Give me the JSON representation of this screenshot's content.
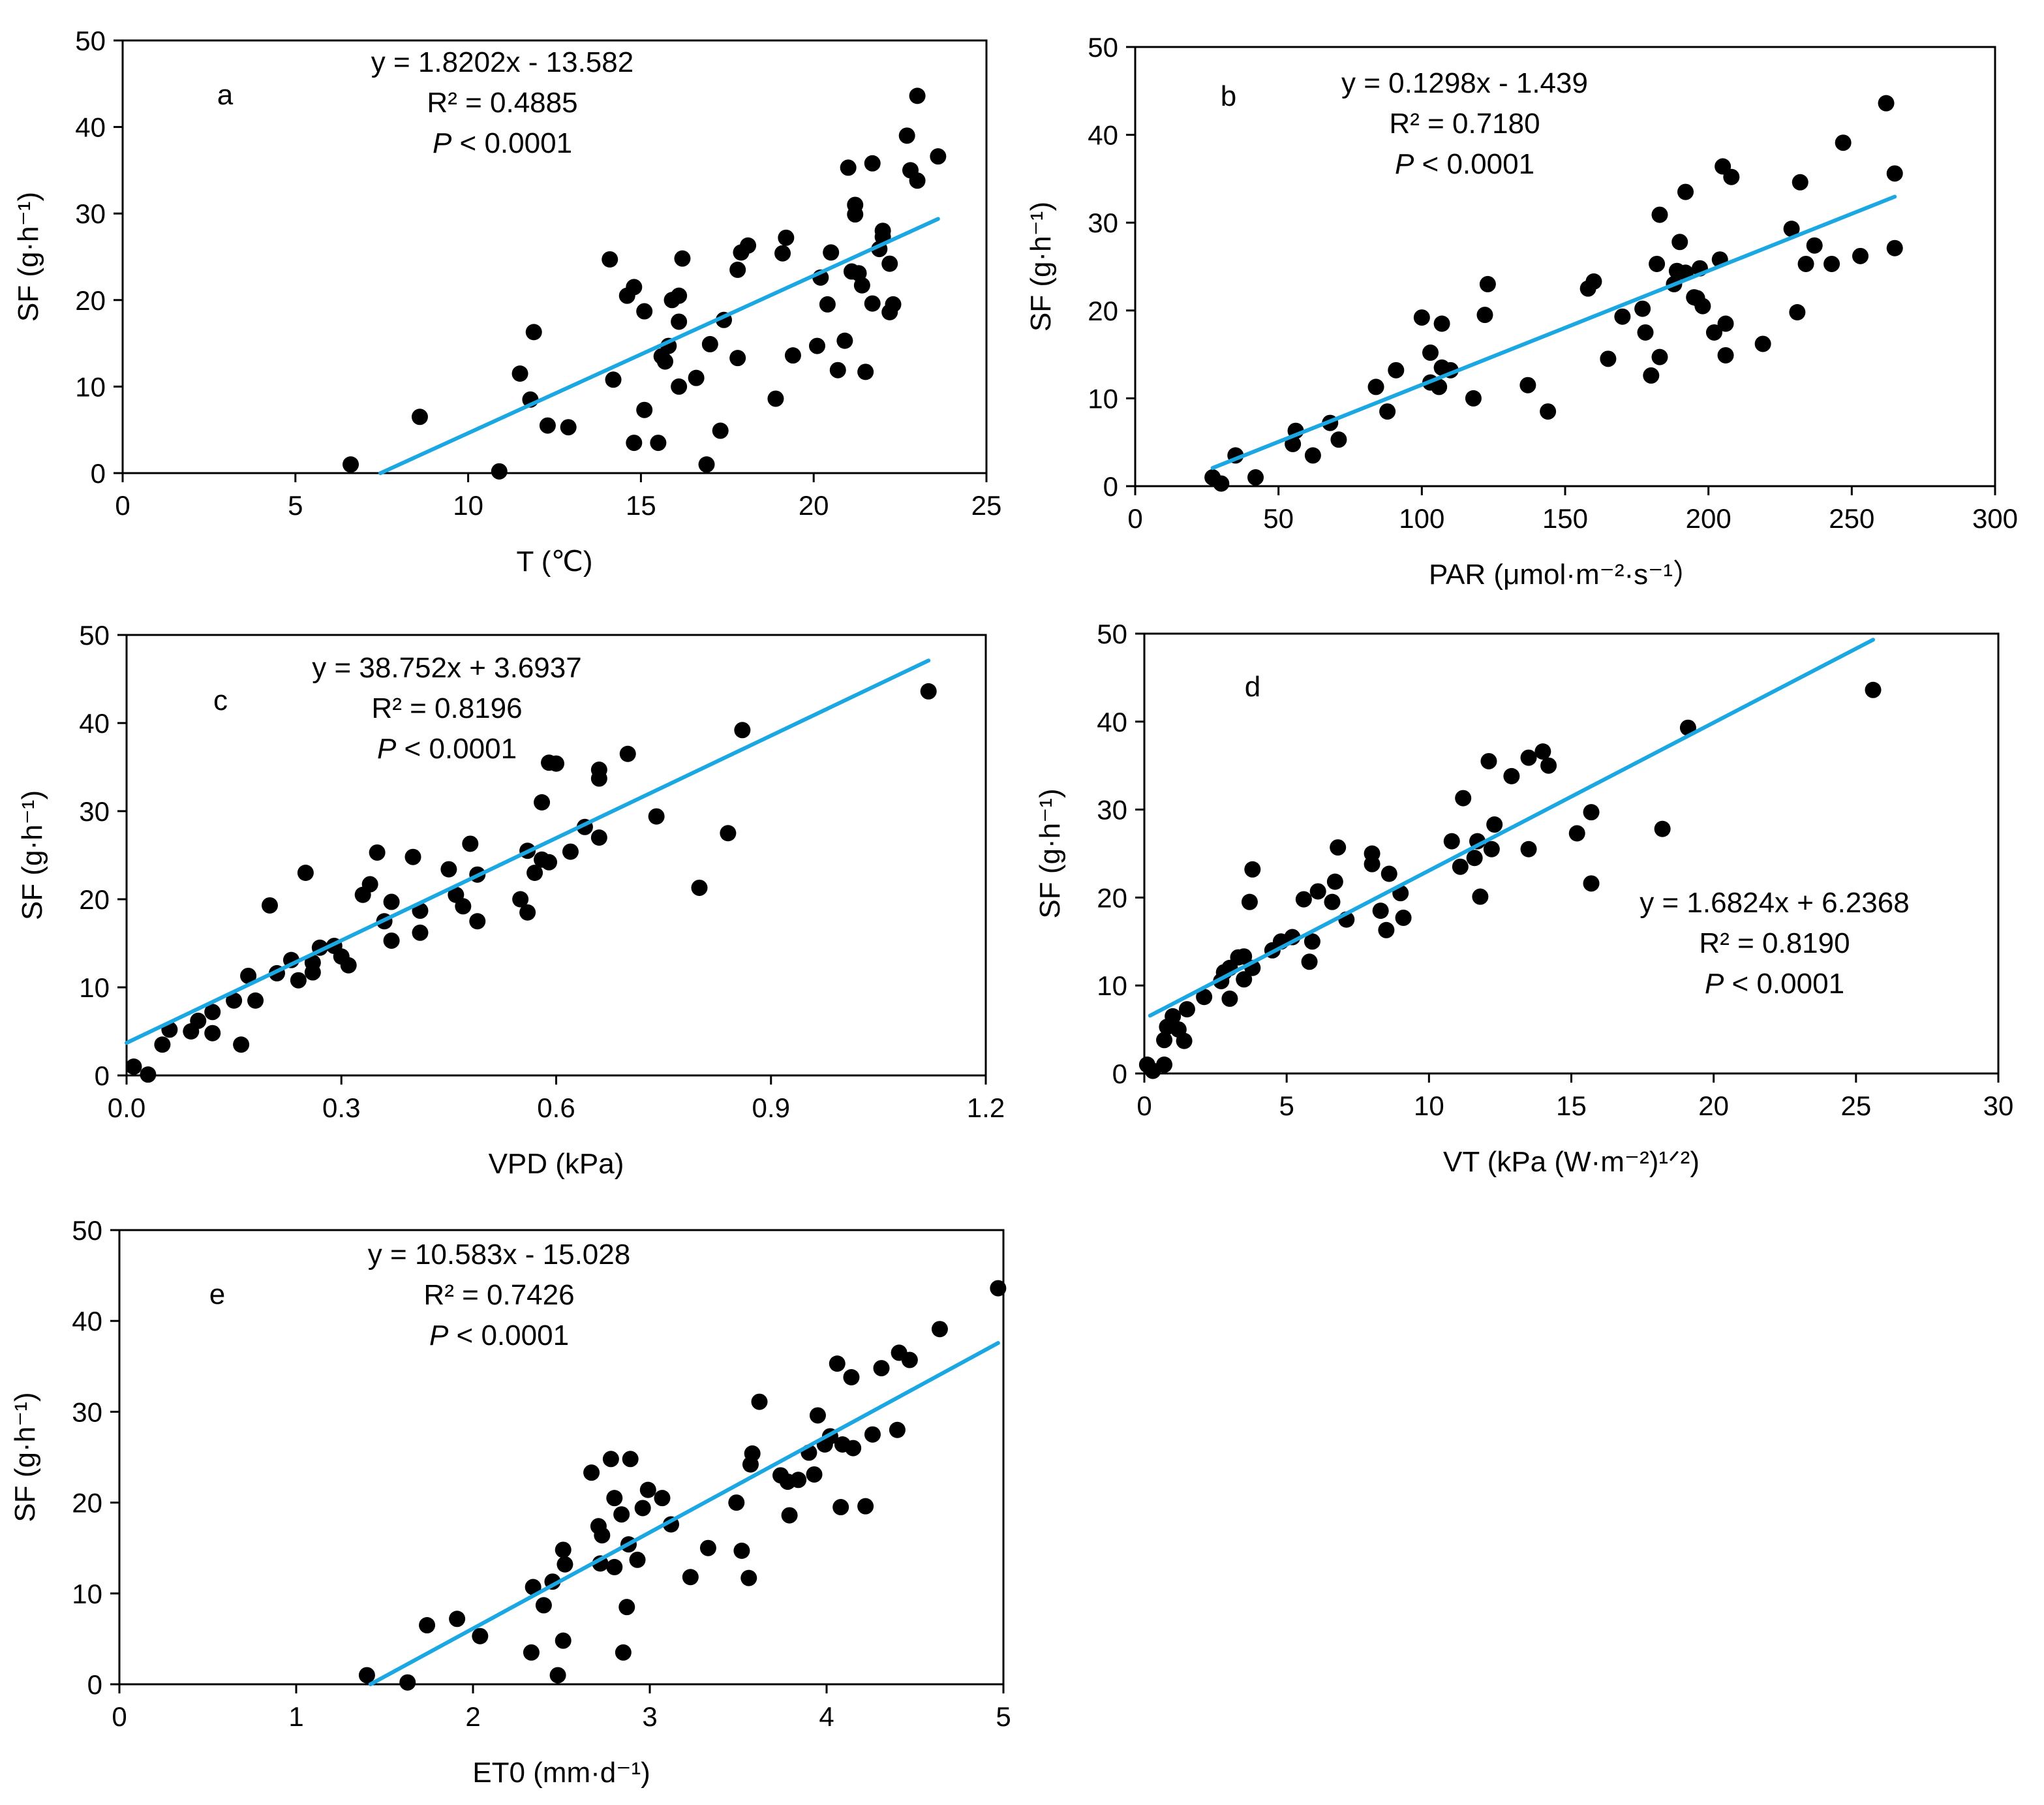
{
  "colors": {
    "point": "#000000",
    "trend": "#1aa7e2",
    "axis": "#000000"
  },
  "chart_data": [
    {
      "panel": "a",
      "type": "scatter",
      "xlabel": "T (℃)",
      "ylabel": "SF (g·h⁻¹)",
      "xlim": [
        0,
        25
      ],
      "ylim": [
        0,
        50
      ],
      "xticks": [
        "0",
        "5",
        "10",
        "15",
        "20",
        "25"
      ],
      "yticks": [
        "0",
        "10",
        "20",
        "30",
        "40",
        "50"
      ],
      "equation": "y = 1.8202x - 13.582",
      "r2": "R² = 0.4885",
      "p_symbol": "P",
      "p_value": "< 0.0001",
      "trend": {
        "slope": 1.8202,
        "intercept": -13.582,
        "x_range": [
          7.46,
          23.6
        ]
      },
      "points": [
        [
          6.6,
          1
        ],
        [
          8.6,
          6.5
        ],
        [
          10.9,
          0.2
        ],
        [
          11.5,
          11.5
        ],
        [
          11.8,
          8.5
        ],
        [
          11.9,
          16.3
        ],
        [
          12.3,
          5.5
        ],
        [
          12.9,
          5.3
        ],
        [
          14.1,
          24.7
        ],
        [
          14.2,
          10.8
        ],
        [
          14.6,
          20.5
        ],
        [
          14.8,
          3.5
        ],
        [
          14.8,
          21.5
        ],
        [
          15.1,
          18.7
        ],
        [
          15.1,
          7.3
        ],
        [
          15.5,
          3.5
        ],
        [
          15.6,
          13.5
        ],
        [
          15.7,
          12.9
        ],
        [
          15.8,
          14.7
        ],
        [
          15.9,
          20
        ],
        [
          16.1,
          20.5
        ],
        [
          16.1,
          10
        ],
        [
          16.1,
          17.5
        ],
        [
          16.2,
          24.8
        ],
        [
          16.6,
          11
        ],
        [
          16.9,
          1
        ],
        [
          17,
          14.9
        ],
        [
          17.3,
          4.9
        ],
        [
          17.4,
          17.7
        ],
        [
          17.8,
          23.5
        ],
        [
          17.8,
          13.3
        ],
        [
          17.9,
          25.5
        ],
        [
          18.1,
          26.3
        ],
        [
          18.9,
          8.6
        ],
        [
          19.1,
          25.4
        ],
        [
          19.2,
          27.2
        ],
        [
          19.4,
          13.6
        ],
        [
          20.1,
          14.7
        ],
        [
          20.2,
          22.6
        ],
        [
          20.4,
          19.5
        ],
        [
          20.5,
          25.5
        ],
        [
          20.7,
          11.9
        ],
        [
          20.9,
          15.3
        ],
        [
          21,
          35.3
        ],
        [
          21.1,
          23.3
        ],
        [
          21.2,
          29.9
        ],
        [
          21.2,
          31
        ],
        [
          21.3,
          23.1
        ],
        [
          21.4,
          21.7
        ],
        [
          21.5,
          11.7
        ],
        [
          21.7,
          35.8
        ],
        [
          21.7,
          19.6
        ],
        [
          21.9,
          25.9
        ],
        [
          22,
          27.3
        ],
        [
          22,
          28
        ],
        [
          22.2,
          18.6
        ],
        [
          22.3,
          19.5
        ],
        [
          22.2,
          24.2
        ],
        [
          22.7,
          39
        ],
        [
          22.8,
          35
        ],
        [
          23,
          33.8
        ],
        [
          23,
          43.6
        ],
        [
          23.6,
          36.6
        ]
      ]
    },
    {
      "panel": "b",
      "type": "scatter",
      "xlabel": "PAR (μmol·m⁻²·s⁻¹）",
      "ylabel": "SF (g·h⁻¹)",
      "xlim": [
        0,
        300
      ],
      "ylim": [
        0,
        50
      ],
      "xticks": [
        "0",
        "50",
        "100",
        "150",
        "200",
        "250",
        "300"
      ],
      "yticks": [
        "0",
        "10",
        "20",
        "30",
        "40",
        "50"
      ],
      "equation": "y = 0.1298x - 1.439",
      "r2": "R² = 0.7180",
      "p_symbol": "P",
      "p_value": "< 0.0001",
      "trend": {
        "slope": 0.1298,
        "intercept": -1.439,
        "x_range": [
          27,
          265
        ]
      },
      "points": [
        [
          27,
          1
        ],
        [
          30,
          0.3
        ],
        [
          35,
          3.5
        ],
        [
          42,
          1
        ],
        [
          55,
          4.8
        ],
        [
          56,
          6.3
        ],
        [
          62,
          3.5
        ],
        [
          68,
          7.2
        ],
        [
          71,
          5.3
        ],
        [
          84,
          11.3
        ],
        [
          88,
          8.5
        ],
        [
          91,
          13.2
        ],
        [
          100,
          19.2
        ],
        [
          103,
          15.2
        ],
        [
          103,
          11.8
        ],
        [
          106,
          11.3
        ],
        [
          107,
          18.5
        ],
        [
          107,
          13.5
        ],
        [
          110,
          13.2
        ],
        [
          118,
          10
        ],
        [
          122,
          19.5
        ],
        [
          123,
          23
        ],
        [
          137,
          11.5
        ],
        [
          144,
          8.5
        ],
        [
          158,
          22.5
        ],
        [
          160,
          23.3
        ],
        [
          165,
          14.5
        ],
        [
          170,
          19.3
        ],
        [
          177,
          20.2
        ],
        [
          178,
          17.5
        ],
        [
          180,
          12.6
        ],
        [
          182,
          25.3
        ],
        [
          183,
          30.9
        ],
        [
          183,
          14.7
        ],
        [
          188,
          23
        ],
        [
          189,
          24.5
        ],
        [
          190,
          27.8
        ],
        [
          192,
          33.5
        ],
        [
          192,
          24.3
        ],
        [
          195,
          21.5
        ],
        [
          196,
          21.4
        ],
        [
          197,
          24.8
        ],
        [
          198,
          20.5
        ],
        [
          202,
          17.5
        ],
        [
          204,
          25.8
        ],
        [
          205,
          36.4
        ],
        [
          206,
          18.5
        ],
        [
          206,
          14.9
        ],
        [
          208,
          35.2
        ],
        [
          219,
          16.2
        ],
        [
          229,
          29.3
        ],
        [
          231,
          19.8
        ],
        [
          232,
          34.6
        ],
        [
          234,
          25.3
        ],
        [
          237,
          27.4
        ],
        [
          243,
          25.3
        ],
        [
          247,
          39.1
        ],
        [
          253,
          26.2
        ],
        [
          262,
          43.6
        ],
        [
          265,
          35.6
        ],
        [
          265,
          27.1
        ]
      ]
    },
    {
      "panel": "c",
      "type": "scatter",
      "xlabel": "VPD (kPa)",
      "ylabel": "SF (g·h⁻¹)",
      "xlim": [
        0,
        1.2
      ],
      "ylim": [
        0,
        50
      ],
      "xticks": [
        "0.0",
        "0.3",
        "0.6",
        "0.9",
        "1.2"
      ],
      "yticks": [
        "0",
        "10",
        "20",
        "30",
        "40",
        "50"
      ],
      "equation": "y = 38.752x + 3.6937",
      "r2": "R² = 0.8196",
      "p_symbol": "P",
      "p_value": "< 0.0001",
      "trend": {
        "slope": 38.752,
        "intercept": 3.6937,
        "x_range": [
          0,
          1.12
        ]
      },
      "points": [
        [
          0.01,
          1
        ],
        [
          0.03,
          0.1
        ],
        [
          0.05,
          3.5
        ],
        [
          0.06,
          5.2
        ],
        [
          0.09,
          5
        ],
        [
          0.1,
          6.2
        ],
        [
          0.12,
          7.2
        ],
        [
          0.12,
          4.8
        ],
        [
          0.15,
          8.5
        ],
        [
          0.16,
          3.5
        ],
        [
          0.17,
          11.3
        ],
        [
          0.18,
          8.5
        ],
        [
          0.2,
          19.3
        ],
        [
          0.21,
          11.6
        ],
        [
          0.23,
          13.1
        ],
        [
          0.24,
          10.8
        ],
        [
          0.25,
          23
        ],
        [
          0.26,
          12.8
        ],
        [
          0.26,
          11.7
        ],
        [
          0.27,
          14.5
        ],
        [
          0.29,
          14.7
        ],
        [
          0.3,
          13.5
        ],
        [
          0.31,
          12.5
        ],
        [
          0.33,
          20.5
        ],
        [
          0.34,
          21.7
        ],
        [
          0.35,
          25.3
        ],
        [
          0.36,
          17.5
        ],
        [
          0.37,
          15.3
        ],
        [
          0.37,
          19.7
        ],
        [
          0.4,
          24.8
        ],
        [
          0.41,
          16.2
        ],
        [
          0.41,
          18.7
        ],
        [
          0.45,
          23.4
        ],
        [
          0.46,
          20.5
        ],
        [
          0.47,
          19.2
        ],
        [
          0.48,
          26.3
        ],
        [
          0.49,
          17.5
        ],
        [
          0.49,
          22.8
        ],
        [
          0.55,
          20
        ],
        [
          0.56,
          18.5
        ],
        [
          0.56,
          25.5
        ],
        [
          0.57,
          23
        ],
        [
          0.58,
          31
        ],
        [
          0.58,
          24.5
        ],
        [
          0.59,
          35.5
        ],
        [
          0.59,
          24.2
        ],
        [
          0.6,
          35.4
        ],
        [
          0.62,
          25.4
        ],
        [
          0.64,
          28.2
        ],
        [
          0.66,
          33.7
        ],
        [
          0.66,
          34.7
        ],
        [
          0.66,
          27
        ],
        [
          0.7,
          36.5
        ],
        [
          0.74,
          29.4
        ],
        [
          0.8,
          21.3
        ],
        [
          0.84,
          27.5
        ],
        [
          0.86,
          39.2
        ],
        [
          1.12,
          43.6
        ]
      ]
    },
    {
      "panel": "d",
      "type": "scatter",
      "xlabel": "VT (kPa (W·m⁻²)¹ᐟ²)",
      "ylabel": "SF (g·h⁻¹)",
      "xlim": [
        0,
        30
      ],
      "ylim": [
        0,
        50
      ],
      "xticks": [
        "0",
        "5",
        "10",
        "15",
        "20",
        "25",
        "30"
      ],
      "yticks": [
        "0",
        "10",
        "20",
        "30",
        "40",
        "50"
      ],
      "equation": "y = 1.6824x + 6.2368",
      "r2": "R² = 0.8190",
      "p_symbol": "P",
      "p_value": "< 0.0001",
      "trend": {
        "slope": 1.6824,
        "intercept": 6.2368,
        "x_range": [
          0.2,
          25.6
        ]
      },
      "points": [
        [
          0.1,
          1
        ],
        [
          0.3,
          0.3
        ],
        [
          0.7,
          1
        ],
        [
          0.7,
          3.8
        ],
        [
          0.8,
          5.3
        ],
        [
          1,
          6.5
        ],
        [
          1.2,
          5
        ],
        [
          1.4,
          3.7
        ],
        [
          1.5,
          7.3
        ],
        [
          2.1,
          8.7
        ],
        [
          2.7,
          10.5
        ],
        [
          2.8,
          11.5
        ],
        [
          3,
          8.5
        ],
        [
          3,
          12
        ],
        [
          3.3,
          13.2
        ],
        [
          3.5,
          10.7
        ],
        [
          3.5,
          13.3
        ],
        [
          3.7,
          19.5
        ],
        [
          3.8,
          12
        ],
        [
          3.8,
          23.2
        ],
        [
          4.5,
          14
        ],
        [
          4.8,
          15
        ],
        [
          5.2,
          15.5
        ],
        [
          5.6,
          19.8
        ],
        [
          5.8,
          12.7
        ],
        [
          5.9,
          15
        ],
        [
          6.1,
          20.7
        ],
        [
          6.6,
          19.5
        ],
        [
          6.7,
          21.8
        ],
        [
          6.8,
          25.7
        ],
        [
          7.1,
          17.5
        ],
        [
          8,
          23.8
        ],
        [
          8,
          25
        ],
        [
          8.3,
          18.5
        ],
        [
          8.5,
          16.3
        ],
        [
          8.6,
          22.7
        ],
        [
          9,
          20.5
        ],
        [
          9.1,
          17.7
        ],
        [
          10.8,
          26.4
        ],
        [
          11.1,
          23.5
        ],
        [
          11.2,
          31.3
        ],
        [
          11.6,
          24.5
        ],
        [
          11.7,
          26.4
        ],
        [
          11.8,
          20.1
        ],
        [
          12.1,
          35.5
        ],
        [
          12.2,
          25.5
        ],
        [
          12.3,
          28.3
        ],
        [
          12.9,
          33.8
        ],
        [
          13.5,
          35.9
        ],
        [
          13.5,
          25.5
        ],
        [
          14,
          36.6
        ],
        [
          14.2,
          35
        ],
        [
          15.2,
          27.3
        ],
        [
          15.7,
          29.7
        ],
        [
          15.7,
          21.6
        ],
        [
          18.2,
          27.8
        ],
        [
          19.1,
          39.3
        ],
        [
          25.6,
          43.6
        ]
      ]
    },
    {
      "panel": "e",
      "type": "scatter",
      "xlabel": "ET0 (mm·d⁻¹)",
      "ylabel": "SF (g·h⁻¹)",
      "xlim": [
        0,
        5
      ],
      "ylim": [
        0,
        50
      ],
      "xticks": [
        "0",
        "1",
        "2",
        "3",
        "4",
        "5"
      ],
      "yticks": [
        "0",
        "10",
        "20",
        "30",
        "40",
        "50"
      ],
      "equation": "y = 10.583x - 15.028",
      "r2": "R² = 0.7426",
      "p_symbol": "P",
      "p_value": "< 0.0001",
      "trend": {
        "slope": 10.583,
        "intercept": -15.028,
        "x_range": [
          1.42,
          4.97
        ]
      },
      "points": [
        [
          1.4,
          1
        ],
        [
          1.63,
          0.2
        ],
        [
          1.74,
          6.5
        ],
        [
          1.91,
          7.2
        ],
        [
          2.04,
          5.3
        ],
        [
          2.33,
          3.5
        ],
        [
          2.34,
          10.7
        ],
        [
          2.4,
          8.7
        ],
        [
          2.45,
          11.3
        ],
        [
          2.48,
          1
        ],
        [
          2.51,
          14.8
        ],
        [
          2.51,
          4.8
        ],
        [
          2.52,
          13.2
        ],
        [
          2.67,
          23.3
        ],
        [
          2.71,
          17.4
        ],
        [
          2.72,
          13.3
        ],
        [
          2.73,
          16.4
        ],
        [
          2.78,
          24.8
        ],
        [
          2.8,
          12.9
        ],
        [
          2.8,
          20.5
        ],
        [
          2.84,
          18.7
        ],
        [
          2.85,
          3.5
        ],
        [
          2.87,
          8.5
        ],
        [
          2.88,
          15.4
        ],
        [
          2.89,
          24.8
        ],
        [
          2.93,
          13.7
        ],
        [
          2.96,
          19.4
        ],
        [
          2.99,
          21.4
        ],
        [
          3.07,
          20.5
        ],
        [
          3.12,
          17.6
        ],
        [
          3.23,
          11.8
        ],
        [
          3.33,
          15
        ],
        [
          3.49,
          20
        ],
        [
          3.52,
          14.7
        ],
        [
          3.56,
          11.7
        ],
        [
          3.57,
          24.2
        ],
        [
          3.58,
          25.4
        ],
        [
          3.62,
          31.1
        ],
        [
          3.74,
          23
        ],
        [
          3.78,
          22.3
        ],
        [
          3.79,
          18.6
        ],
        [
          3.84,
          22.5
        ],
        [
          3.9,
          25.5
        ],
        [
          3.93,
          23.1
        ],
        [
          3.95,
          29.6
        ],
        [
          3.99,
          26.4
        ],
        [
          4.02,
          27.3
        ],
        [
          4.06,
          35.3
        ],
        [
          4.08,
          19.5
        ],
        [
          4.09,
          26.4
        ],
        [
          4.14,
          33.8
        ],
        [
          4.15,
          26
        ],
        [
          4.22,
          19.6
        ],
        [
          4.26,
          27.5
        ],
        [
          4.31,
          34.8
        ],
        [
          4.4,
          28
        ],
        [
          4.41,
          36.5
        ],
        [
          4.47,
          35.7
        ],
        [
          4.64,
          39.1
        ],
        [
          4.97,
          43.6
        ]
      ]
    }
  ]
}
